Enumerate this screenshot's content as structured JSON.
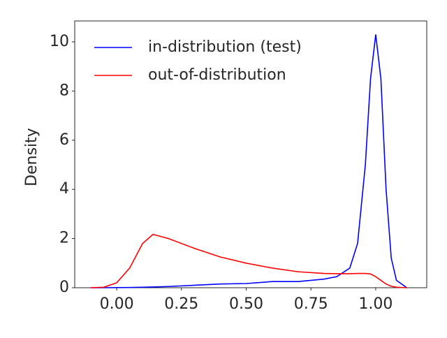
{
  "chart_data": {
    "type": "line",
    "y_label": "Density",
    "x": [
      -0.1,
      -0.05,
      0,
      0.05,
      0.1,
      0.14,
      0.2,
      0.3,
      0.4,
      0.5,
      0.6,
      0.7,
      0.8,
      0.85,
      0.9,
      0.93,
      0.96,
      0.98,
      1.0,
      1.02,
      1.04,
      1.06,
      1.08,
      1.12
    ],
    "series": [
      {
        "name": "in-distribution (test)",
        "color": "#0000ff",
        "values": [
          0,
          0,
          0.005,
          0.01,
          0.02,
          0.03,
          0.05,
          0.1,
          0.15,
          0.17,
          0.25,
          0.25,
          0.35,
          0.45,
          0.8,
          1.8,
          5,
          8.5,
          10.3,
          8.5,
          4,
          1.2,
          0.3,
          0
        ]
      },
      {
        "name": "out-of-distribution",
        "color": "#ff0000",
        "values": [
          0,
          0.02,
          0.2,
          0.8,
          1.8,
          2.17,
          2.0,
          1.6,
          1.25,
          1.0,
          0.8,
          0.65,
          0.58,
          0.57,
          0.57,
          0.58,
          0.58,
          0.56,
          0.45,
          0.3,
          0.15,
          0.06,
          0.02,
          0
        ]
      }
    ],
    "xlim": [
      -0.162,
      1.197
    ],
    "ylim": [
      0,
      10.85
    ],
    "xticks": [
      {
        "value": 0,
        "label": "0.00"
      },
      {
        "value": 0.25,
        "label": "0.25"
      },
      {
        "value": 0.5,
        "label": "0.50"
      },
      {
        "value": 0.75,
        "label": "0.75"
      },
      {
        "value": 1,
        "label": "1.00"
      }
    ],
    "yticks": [
      0,
      2,
      4,
      6,
      8,
      10
    ],
    "legend": "upper left"
  }
}
